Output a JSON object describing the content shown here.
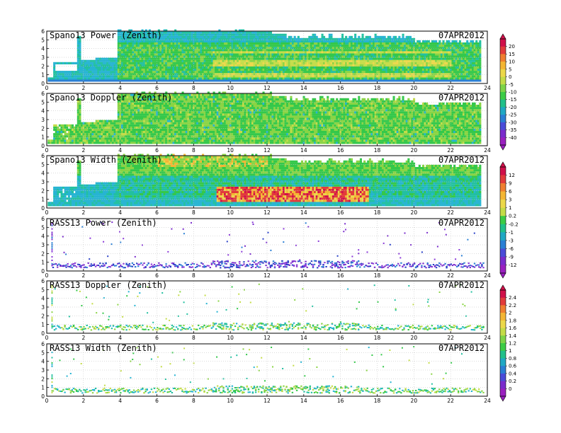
{
  "figure": {
    "date_label": "07APR2012"
  },
  "chart_data": [
    {
      "type": "heatmap",
      "title": "Spano13 Power (Zenith)",
      "kind": "spano_power",
      "xlim": [
        0,
        24
      ],
      "ylim": [
        0,
        6
      ],
      "xticks": [
        "0",
        "2",
        "4",
        "6",
        "8",
        "10",
        "12",
        "14",
        "16",
        "18",
        "20",
        "22",
        "24"
      ],
      "yticks": [
        "0",
        "1",
        "2",
        "3",
        "4",
        "5",
        "6"
      ],
      "colorbar": "a"
    },
    {
      "type": "heatmap",
      "title": "Spano13 Doppler (Zenith)",
      "kind": "spano_doppler",
      "xlim": [
        0,
        24
      ],
      "ylim": [
        0,
        6
      ],
      "xticks": [
        "0",
        "2",
        "4",
        "6",
        "8",
        "10",
        "12",
        "14",
        "16",
        "18",
        "20",
        "22",
        "24"
      ],
      "yticks": [
        "0",
        "1",
        "2",
        "3",
        "4",
        "5",
        "6"
      ]
    },
    {
      "type": "heatmap",
      "title": "Spano13 Width (Zenith)",
      "kind": "spano_width",
      "xlim": [
        0,
        24
      ],
      "ylim": [
        0,
        6
      ],
      "xticks": [
        "0",
        "2",
        "4",
        "6",
        "8",
        "10",
        "12",
        "14",
        "16",
        "18",
        "20",
        "22",
        "24"
      ],
      "yticks": [
        "0",
        "1",
        "2",
        "3",
        "4",
        "5",
        "6"
      ],
      "colorbar": "b"
    },
    {
      "type": "scatter",
      "title": "RASS13 Power (Zenith)",
      "kind": "rass_power",
      "xlim": [
        0,
        24
      ],
      "ylim": [
        0,
        6
      ],
      "xticks": [
        "0",
        "2",
        "4",
        "6",
        "8",
        "10",
        "12",
        "14",
        "16",
        "18",
        "20",
        "22",
        "24"
      ],
      "yticks": [
        "0",
        "1",
        "2",
        "3",
        "4",
        "5",
        "6"
      ]
    },
    {
      "type": "scatter",
      "title": "RASS13 Doppler (Zenith)",
      "kind": "rass_doppler",
      "xlim": [
        0,
        24
      ],
      "ylim": [
        0,
        6
      ],
      "xticks": [
        "0",
        "2",
        "4",
        "6",
        "8",
        "10",
        "12",
        "14",
        "16",
        "18",
        "20",
        "22",
        "24"
      ],
      "yticks": [
        "0",
        "1",
        "2",
        "3",
        "4",
        "5",
        "6"
      ],
      "colorbar": "c"
    },
    {
      "type": "scatter",
      "title": "RASS13 Width (Zenith)",
      "kind": "rass_width",
      "xlim": [
        0,
        24
      ],
      "ylim": [
        0,
        6
      ],
      "xticks": [
        "0",
        "2",
        "4",
        "6",
        "8",
        "10",
        "12",
        "14",
        "16",
        "18",
        "20",
        "22",
        "24"
      ],
      "yticks": [
        "0",
        "1",
        "2",
        "3",
        "4",
        "5",
        "6"
      ]
    }
  ],
  "colorbars": {
    "a": {
      "labels": [
        "20",
        "15",
        "10",
        "5",
        "0",
        "-5",
        "-10",
        "-15",
        "-20",
        "-25",
        "-30",
        "-35",
        "-40"
      ],
      "colors": [
        "#d0104a",
        "#e23b3b",
        "#f07f30",
        "#f4b634",
        "#ecd84a",
        "#c4dc48",
        "#7ed448",
        "#3ccc46",
        "#22c08a",
        "#20a8c4",
        "#2a7fd4",
        "#4a4cd8",
        "#7a2ccc",
        "#9a20c0"
      ]
    },
    "b": {
      "labels": [
        "12",
        "9",
        "6",
        "3",
        "1",
        "0.2",
        "-0.2",
        "-1",
        "-3",
        "-6",
        "-9",
        "-12"
      ],
      "colors": [
        "#d0104a",
        "#e23b3b",
        "#f07f30",
        "#f4b634",
        "#ecd84a",
        "#c4dc48",
        "#3ccc46",
        "#22c08a",
        "#20a8c4",
        "#2a7fd4",
        "#4a4cd8",
        "#7a2ccc",
        "#9a20c0"
      ]
    },
    "c": {
      "labels": [
        "2.4",
        "2.2",
        "2",
        "1.8",
        "1.6",
        "1.4",
        "1.2",
        "1",
        "0.8",
        "0.6",
        "0.4",
        "0.2",
        "0"
      ],
      "colors": [
        "#d0104a",
        "#e23b3b",
        "#f07f30",
        "#f4b634",
        "#ecd84a",
        "#c4dc48",
        "#7ed448",
        "#3ccc46",
        "#22c08a",
        "#20a8c4",
        "#2a7fd4",
        "#4a4cd8",
        "#7a2ccc",
        "#9a20c0"
      ]
    }
  }
}
